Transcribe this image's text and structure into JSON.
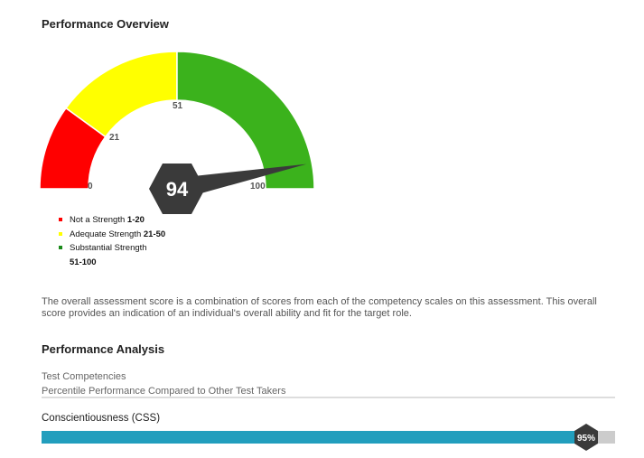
{
  "overview": {
    "title": "Performance Overview"
  },
  "gauge": {
    "value": 94,
    "min": 0,
    "max": 100,
    "value_label": "94",
    "ticks": [
      "0",
      "21",
      "51",
      "100"
    ],
    "segments": [
      {
        "from": 0,
        "to": 20,
        "color": "#ff0000"
      },
      {
        "from": 20,
        "to": 50,
        "color": "#ffff00"
      },
      {
        "from": 50,
        "to": 100,
        "color": "#3bb21c"
      }
    ],
    "needle_color": "#3a3a3a"
  },
  "legend": [
    {
      "label": "Not a Strength",
      "range": "1-20",
      "color": "#ff0000"
    },
    {
      "label": "Adequate Strength",
      "range": "21-50",
      "color": "#ffff00"
    },
    {
      "label": "Substantial Strength",
      "range": "51-100",
      "color": "#1a8a1a"
    }
  ],
  "description": "The overall assessment score is a combination of scores from each of the competency scales on this assessment. This overall score provides an indication of an individual's overall ability and fit for the target role.",
  "analysis": {
    "title": "Performance Analysis",
    "header1": "Test Competencies",
    "header2": "Percentile Performance Compared to Other Test Takers",
    "items": [
      {
        "name": "Conscientiousness (CSS)",
        "percent": 95,
        "label": "95%",
        "color": "#229ebd"
      }
    ]
  }
}
